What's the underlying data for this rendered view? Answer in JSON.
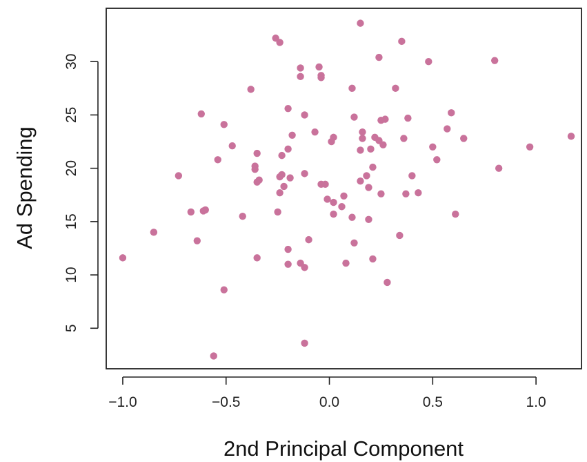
{
  "chart_data": {
    "type": "scatter",
    "title": "",
    "xlabel": "2nd Principal Component",
    "ylabel": "Ad Spending",
    "xlim": [
      -1.08,
      1.22
    ],
    "ylim": [
      1.2,
      35.0
    ],
    "xticks": [
      -1.0,
      -0.5,
      0.0,
      0.5,
      1.0
    ],
    "xtick_labels": [
      "−1.0",
      "−0.5",
      "0.0",
      "0.5",
      "1.0"
    ],
    "yticks": [
      5,
      10,
      15,
      20,
      25,
      30
    ],
    "ytick_labels": [
      "5",
      "10",
      "15",
      "20",
      "25",
      "30"
    ],
    "grid": false,
    "legend": false,
    "point_color": "#c9729b",
    "points": [
      {
        "x": -1.0,
        "y": 11.6
      },
      {
        "x": -0.85,
        "y": 14.0
      },
      {
        "x": -0.73,
        "y": 19.3
      },
      {
        "x": -0.67,
        "y": 15.9
      },
      {
        "x": -0.64,
        "y": 13.2
      },
      {
        "x": -0.61,
        "y": 16.0
      },
      {
        "x": -0.62,
        "y": 25.1
      },
      {
        "x": -0.6,
        "y": 16.1
      },
      {
        "x": -0.56,
        "y": 2.4
      },
      {
        "x": -0.54,
        "y": 20.8
      },
      {
        "x": -0.51,
        "y": 24.1
      },
      {
        "x": -0.51,
        "y": 8.6
      },
      {
        "x": -0.47,
        "y": 22.1
      },
      {
        "x": -0.42,
        "y": 15.5
      },
      {
        "x": -0.38,
        "y": 27.4
      },
      {
        "x": -0.36,
        "y": 19.9
      },
      {
        "x": -0.36,
        "y": 20.2
      },
      {
        "x": -0.35,
        "y": 18.7
      },
      {
        "x": -0.35,
        "y": 21.4
      },
      {
        "x": -0.34,
        "y": 18.9
      },
      {
        "x": -0.35,
        "y": 11.6
      },
      {
        "x": -0.26,
        "y": 32.2
      },
      {
        "x": -0.24,
        "y": 31.8
      },
      {
        "x": -0.25,
        "y": 15.9
      },
      {
        "x": -0.24,
        "y": 19.2
      },
      {
        "x": -0.24,
        "y": 17.7
      },
      {
        "x": -0.23,
        "y": 19.4
      },
      {
        "x": -0.23,
        "y": 21.2
      },
      {
        "x": -0.22,
        "y": 18.3
      },
      {
        "x": -0.2,
        "y": 25.6
      },
      {
        "x": -0.2,
        "y": 21.8
      },
      {
        "x": -0.2,
        "y": 12.4
      },
      {
        "x": -0.2,
        "y": 11.0
      },
      {
        "x": -0.19,
        "y": 19.1
      },
      {
        "x": -0.18,
        "y": 23.1
      },
      {
        "x": -0.14,
        "y": 29.4
      },
      {
        "x": -0.14,
        "y": 28.6
      },
      {
        "x": -0.14,
        "y": 11.1
      },
      {
        "x": -0.12,
        "y": 25.0
      },
      {
        "x": -0.12,
        "y": 19.5
      },
      {
        "x": -0.12,
        "y": 10.7
      },
      {
        "x": -0.12,
        "y": 3.6
      },
      {
        "x": -0.1,
        "y": 13.3
      },
      {
        "x": -0.07,
        "y": 23.4
      },
      {
        "x": -0.05,
        "y": 29.5
      },
      {
        "x": -0.04,
        "y": 28.7
      },
      {
        "x": -0.04,
        "y": 28.5
      },
      {
        "x": -0.04,
        "y": 18.5
      },
      {
        "x": -0.02,
        "y": 18.5
      },
      {
        "x": -0.01,
        "y": 17.1
      },
      {
        "x": 0.01,
        "y": 22.5
      },
      {
        "x": 0.02,
        "y": 22.9
      },
      {
        "x": 0.02,
        "y": 16.8
      },
      {
        "x": 0.02,
        "y": 15.7
      },
      {
        "x": 0.06,
        "y": 16.4
      },
      {
        "x": 0.07,
        "y": 17.4
      },
      {
        "x": 0.08,
        "y": 11.1
      },
      {
        "x": 0.11,
        "y": 27.5
      },
      {
        "x": 0.11,
        "y": 15.4
      },
      {
        "x": 0.12,
        "y": 24.8
      },
      {
        "x": 0.12,
        "y": 13.0
      },
      {
        "x": 0.15,
        "y": 33.6
      },
      {
        "x": 0.15,
        "y": 21.7
      },
      {
        "x": 0.15,
        "y": 18.8
      },
      {
        "x": 0.16,
        "y": 23.4
      },
      {
        "x": 0.16,
        "y": 22.8
      },
      {
        "x": 0.18,
        "y": 19.3
      },
      {
        "x": 0.19,
        "y": 18.2
      },
      {
        "x": 0.19,
        "y": 15.2
      },
      {
        "x": 0.2,
        "y": 21.8
      },
      {
        "x": 0.21,
        "y": 20.1
      },
      {
        "x": 0.21,
        "y": 11.5
      },
      {
        "x": 0.22,
        "y": 22.9
      },
      {
        "x": 0.24,
        "y": 30.4
      },
      {
        "x": 0.24,
        "y": 22.6
      },
      {
        "x": 0.25,
        "y": 24.5
      },
      {
        "x": 0.25,
        "y": 17.6
      },
      {
        "x": 0.26,
        "y": 22.2
      },
      {
        "x": 0.27,
        "y": 24.6
      },
      {
        "x": 0.28,
        "y": 9.3
      },
      {
        "x": 0.32,
        "y": 27.5
      },
      {
        "x": 0.34,
        "y": 13.7
      },
      {
        "x": 0.35,
        "y": 31.9
      },
      {
        "x": 0.36,
        "y": 22.8
      },
      {
        "x": 0.37,
        "y": 17.6
      },
      {
        "x": 0.38,
        "y": 24.7
      },
      {
        "x": 0.4,
        "y": 19.3
      },
      {
        "x": 0.43,
        "y": 17.7
      },
      {
        "x": 0.48,
        "y": 30.0
      },
      {
        "x": 0.5,
        "y": 22.0
      },
      {
        "x": 0.52,
        "y": 20.8
      },
      {
        "x": 0.57,
        "y": 23.7
      },
      {
        "x": 0.59,
        "y": 25.2
      },
      {
        "x": 0.61,
        "y": 15.7
      },
      {
        "x": 0.65,
        "y": 22.8
      },
      {
        "x": 0.8,
        "y": 30.1
      },
      {
        "x": 0.82,
        "y": 20.0
      },
      {
        "x": 0.97,
        "y": 22.0
      },
      {
        "x": 1.17,
        "y": 23.0
      }
    ]
  }
}
